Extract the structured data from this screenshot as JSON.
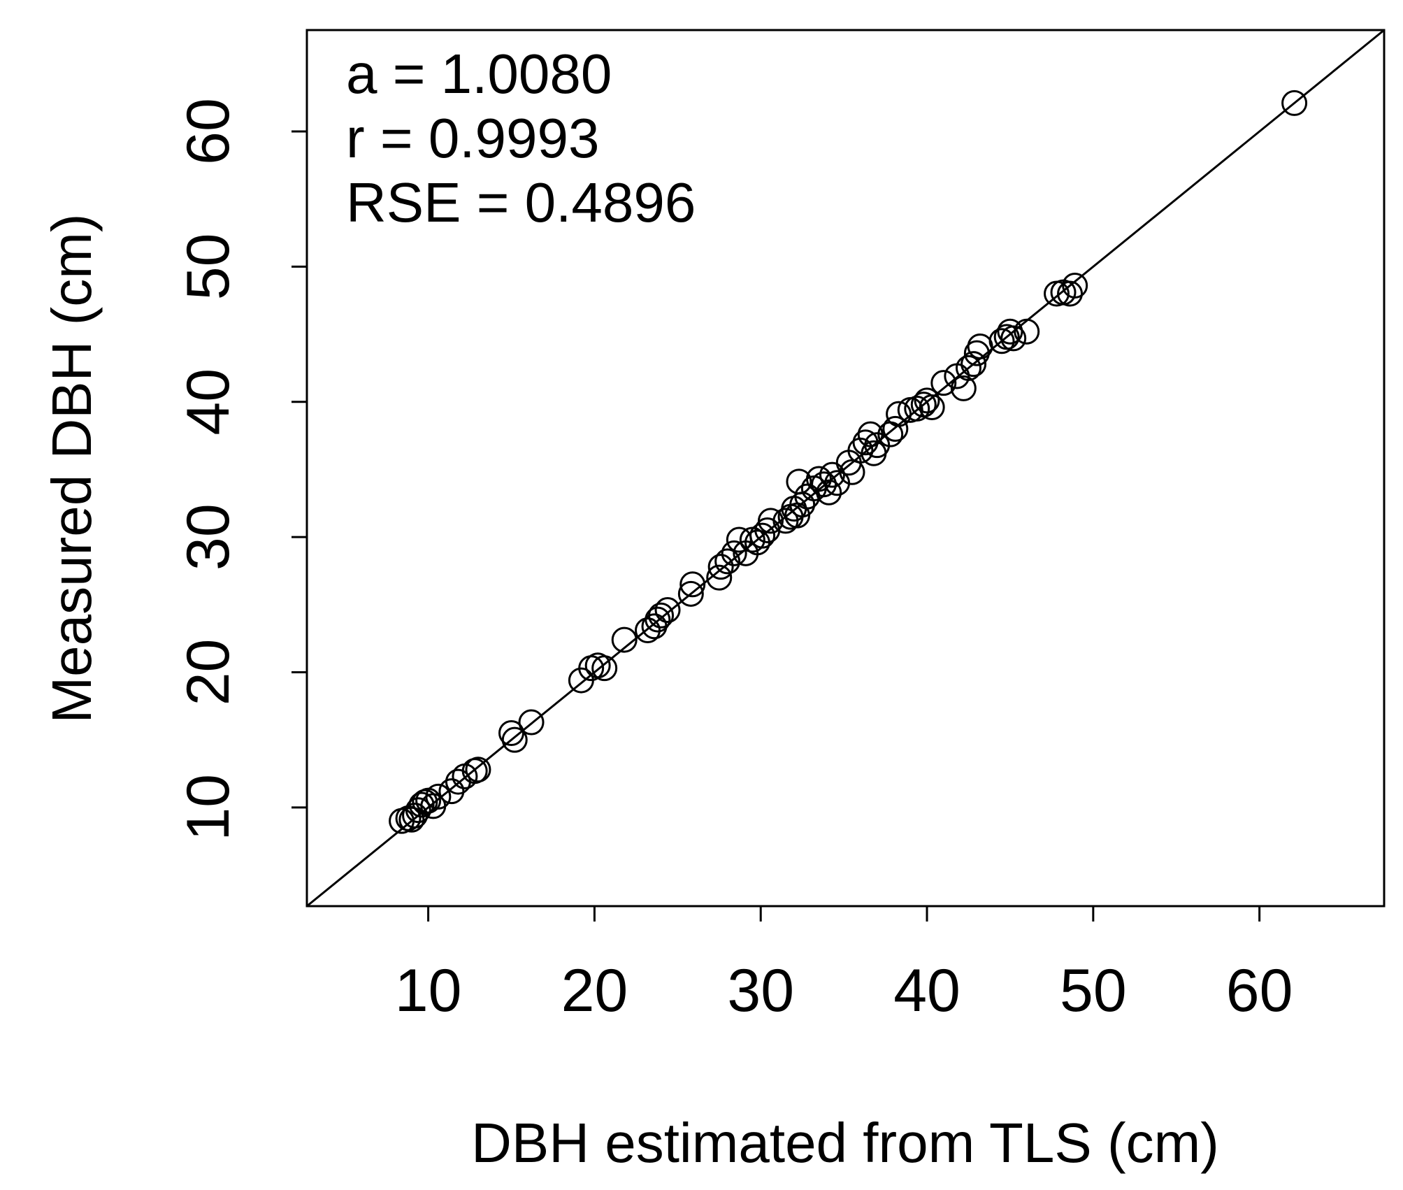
{
  "chart_data": {
    "type": "scatter",
    "title": "",
    "xlabel": "DBH estimated from TLS (cm)",
    "ylabel": "Measured DBH (cm)",
    "xlim": [
      2.7,
      67.5
    ],
    "ylim": [
      2.7,
      67.5
    ],
    "xticks": [
      "10",
      "20",
      "30",
      "40",
      "50",
      "60"
    ],
    "yticks": [
      "10",
      "20",
      "30",
      "40",
      "50",
      "60"
    ],
    "grid": false,
    "legend": "none",
    "marker": "open-circle",
    "reference_line": {
      "slope": 1,
      "intercept": 0
    },
    "annotations": [
      "a =  1.0080",
      "r =  0.9993",
      "RSE =  0.4896"
    ],
    "series": [
      {
        "points": [
          [
            8.4,
            9.0
          ],
          [
            8.8,
            9.2
          ],
          [
            9.0,
            9.1
          ],
          [
            9.2,
            9.4
          ],
          [
            9.4,
            9.8
          ],
          [
            9.6,
            10.2
          ],
          [
            9.8,
            10.4
          ],
          [
            10.0,
            10.5
          ],
          [
            10.3,
            10.1
          ],
          [
            10.6,
            10.8
          ],
          [
            11.4,
            11.2
          ],
          [
            11.8,
            11.9
          ],
          [
            12.2,
            12.3
          ],
          [
            12.8,
            12.7
          ],
          [
            13.0,
            12.8
          ],
          [
            15.0,
            15.5
          ],
          [
            15.2,
            15.0
          ],
          [
            16.2,
            16.3
          ],
          [
            19.2,
            19.4
          ],
          [
            19.8,
            20.3
          ],
          [
            20.2,
            20.5
          ],
          [
            20.6,
            20.3
          ],
          [
            21.8,
            22.4
          ],
          [
            23.2,
            23.1
          ],
          [
            23.6,
            23.4
          ],
          [
            23.8,
            23.9
          ],
          [
            24.0,
            24.2
          ],
          [
            24.4,
            24.6
          ],
          [
            25.8,
            25.8
          ],
          [
            25.9,
            26.5
          ],
          [
            27.5,
            27.0
          ],
          [
            27.6,
            27.8
          ],
          [
            28.0,
            28.2
          ],
          [
            28.4,
            28.8
          ],
          [
            28.7,
            29.8
          ],
          [
            29.1,
            28.8
          ],
          [
            29.5,
            29.8
          ],
          [
            29.8,
            29.6
          ],
          [
            30.1,
            30.1
          ],
          [
            30.4,
            30.5
          ],
          [
            30.6,
            31.2
          ],
          [
            31.5,
            31.2
          ],
          [
            31.8,
            31.5
          ],
          [
            32.0,
            32.1
          ],
          [
            32.2,
            31.6
          ],
          [
            32.3,
            34.1
          ],
          [
            32.5,
            32.4
          ],
          [
            32.8,
            33.0
          ],
          [
            33.2,
            33.6
          ],
          [
            33.5,
            34.3
          ],
          [
            33.8,
            33.9
          ],
          [
            34.1,
            33.3
          ],
          [
            34.3,
            34.6
          ],
          [
            34.6,
            34.0
          ],
          [
            35.3,
            35.5
          ],
          [
            35.5,
            34.8
          ],
          [
            36.0,
            36.4
          ],
          [
            36.3,
            37.0
          ],
          [
            36.6,
            37.6
          ],
          [
            36.8,
            36.2
          ],
          [
            37.0,
            36.8
          ],
          [
            37.8,
            37.6
          ],
          [
            38.1,
            38.0
          ],
          [
            38.3,
            39.1
          ],
          [
            39.0,
            39.4
          ],
          [
            39.4,
            39.5
          ],
          [
            39.8,
            39.8
          ],
          [
            40.0,
            40.1
          ],
          [
            40.3,
            39.6
          ],
          [
            41.0,
            41.4
          ],
          [
            41.8,
            41.9
          ],
          [
            42.2,
            41.0
          ],
          [
            42.5,
            42.5
          ],
          [
            42.8,
            42.8
          ],
          [
            43.0,
            43.6
          ],
          [
            43.2,
            44.1
          ],
          [
            44.5,
            44.5
          ],
          [
            44.8,
            44.8
          ],
          [
            45.0,
            45.2
          ],
          [
            45.2,
            44.7
          ],
          [
            46.0,
            45.2
          ],
          [
            47.8,
            48.0
          ],
          [
            48.2,
            48.1
          ],
          [
            48.6,
            48.0
          ],
          [
            48.9,
            48.6
          ],
          [
            62.1,
            62.1
          ]
        ]
      }
    ]
  }
}
